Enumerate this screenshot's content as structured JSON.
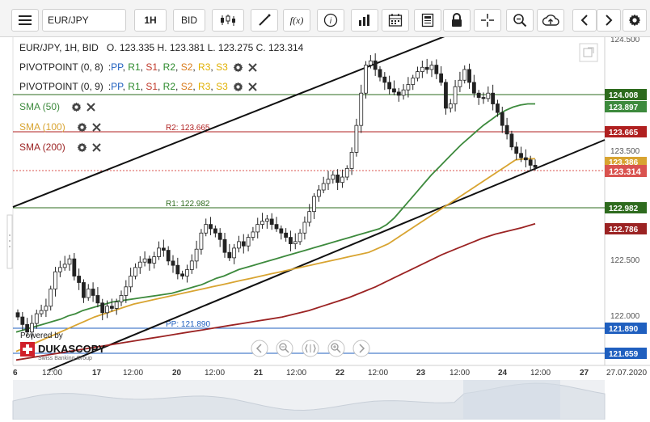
{
  "toolbar": {
    "instrument": "EUR/JPY",
    "timeframe": "1H",
    "price_side": "BID",
    "function_label": "f(x)"
  },
  "header": {
    "symbol_line": "EUR/JPY, 1H, BID",
    "ohlc": "O. 123.335 H. 123.381 L. 123.275 C. 123.314"
  },
  "indicators": {
    "pivot1": {
      "label": "PIVOTPOINT (0, 8)",
      "levels": [
        "PP",
        "R1",
        "S1",
        "R2",
        "S2",
        "R3",
        "S3"
      ]
    },
    "pivot2": {
      "label": "PIVOTPOINT (0, 9)",
      "levels": [
        "PP",
        "R1",
        "S1",
        "R2",
        "S2",
        "R3",
        "S3"
      ]
    },
    "sma50": {
      "label": "SMA (50)",
      "color": "#3d8a3d"
    },
    "sma100": {
      "label": "SMA (100)",
      "color": "#d8a431"
    },
    "sma200": {
      "label": "SMA (200)",
      "color": "#9b2323"
    },
    "level_colors": {
      "PP": "#1f5fbf",
      "R1": "#2e8b2e",
      "S1": "#c0392b",
      "R2": "#2e8b2e",
      "S2": "#d87a1a",
      "R3": "#e0b000",
      "S3": "#e0b000"
    }
  },
  "pivot_labels": {
    "r2": "R2: 123.665",
    "r1": "R1: 122.982",
    "pp": "PP: 121.890"
  },
  "price_axis": {
    "ticks": [
      "124.500",
      "123.500",
      "122.500",
      "122.000"
    ],
    "tags": [
      {
        "text": "124.008",
        "bg": "#2e6b1e"
      },
      {
        "text": "123.897",
        "bg": "#3d8a3d"
      },
      {
        "text": "123.665",
        "bg": "#b02020"
      },
      {
        "text": "123.386",
        "bg": "#d8a431"
      },
      {
        "text": "123.314",
        "bg": "#d9534f"
      },
      {
        "text": "122.982",
        "bg": "#2e6b1e"
      },
      {
        "text": "122.786",
        "bg": "#9b2323"
      },
      {
        "text": "121.890",
        "bg": "#1f5fbf"
      },
      {
        "text": "121.659",
        "bg": "#1f5fbf"
      }
    ]
  },
  "time_axis": {
    "labels": [
      "6",
      "12:00",
      "17",
      "12:00",
      "20",
      "12:00",
      "21",
      "12:00",
      "22",
      "12:00",
      "23",
      "12:00",
      "24",
      "12:00",
      "27",
      "27.07.2020"
    ]
  },
  "branding": {
    "powered_by": "Powered by",
    "name": "DUKASCOPY",
    "tagline": "Swiss Banking Group"
  },
  "chart_data": {
    "type": "candlestick",
    "instrument": "EUR/JPY",
    "timeframe": "1H",
    "y_range": [
      121.6,
      124.55
    ],
    "x_range_labels": [
      "6",
      "17",
      "20",
      "21",
      "22",
      "23",
      "24",
      "27"
    ],
    "close_series": [
      121.92,
      121.85,
      121.78,
      121.86,
      121.95,
      121.98,
      122.02,
      122.18,
      122.34,
      122.38,
      122.41,
      122.46,
      122.3,
      122.24,
      122.1,
      122.18,
      122.12,
      122.05,
      121.96,
      122.02,
      122.0,
      122.06,
      122.12,
      122.2,
      122.3,
      122.38,
      122.43,
      122.46,
      122.42,
      122.48,
      122.56,
      122.54,
      122.44,
      122.4,
      122.32,
      122.3,
      122.36,
      122.44,
      122.55,
      122.7,
      122.78,
      122.74,
      122.7,
      122.64,
      122.52,
      122.47,
      122.56,
      122.62,
      122.58,
      122.66,
      122.71,
      122.78,
      122.81,
      122.83,
      122.78,
      122.74,
      122.7,
      122.66,
      122.6,
      122.62,
      122.7,
      122.8,
      122.9,
      123.04,
      123.1,
      123.16,
      123.2,
      123.24,
      123.17,
      123.22,
      123.3,
      123.45,
      123.7,
      124.0,
      124.26,
      124.3,
      124.22,
      124.15,
      124.1,
      124.04,
      124.01,
      123.98,
      124.03,
      124.08,
      124.14,
      124.2,
      124.24,
      124.22,
      124.26,
      124.18,
      124.1,
      123.86,
      123.9,
      124.06,
      124.12,
      124.22,
      124.1,
      124.0,
      123.96,
      123.95,
      124.0,
      123.9,
      123.82,
      123.7,
      123.62,
      123.5,
      123.44,
      123.4,
      123.38,
      123.33,
      123.31
    ],
    "sma50": [
      121.78,
      121.8,
      121.82,
      121.84,
      121.86,
      121.88,
      121.9,
      121.93,
      121.95,
      121.98,
      122.0,
      122.02,
      122.04,
      122.06,
      122.07,
      122.08,
      122.09,
      122.1,
      122.11,
      122.12,
      122.13,
      122.14,
      122.16,
      122.18,
      122.2,
      122.22,
      122.25,
      122.28,
      122.3,
      122.33,
      122.36,
      122.38,
      122.4,
      122.42,
      122.44,
      122.46,
      122.48,
      122.5,
      122.52,
      122.54,
      122.56,
      122.58,
      122.6,
      122.62,
      122.64,
      122.66,
      122.68,
      122.7,
      122.72,
      122.74,
      122.78,
      122.84,
      122.92,
      123.0,
      123.08,
      123.16,
      123.24,
      123.31,
      123.38,
      123.45,
      123.52,
      123.58,
      123.64,
      123.7,
      123.75,
      123.8,
      123.84,
      123.87,
      123.89,
      123.9,
      123.9
    ],
    "sma100": [
      121.6,
      121.64,
      121.68,
      121.72,
      121.76,
      121.8,
      121.84,
      121.88,
      121.92,
      121.95,
      121.98,
      122.01,
      122.04,
      122.06,
      122.08,
      122.1,
      122.12,
      122.14,
      122.16,
      122.18,
      122.2,
      122.22,
      122.24,
      122.26,
      122.28,
      122.3,
      122.32,
      122.34,
      122.36,
      122.38,
      122.4,
      122.42,
      122.44,
      122.46,
      122.48,
      122.5,
      122.52,
      122.56,
      122.6,
      122.66,
      122.72,
      122.78,
      122.84,
      122.9,
      122.96,
      123.02,
      123.08,
      123.14,
      123.2,
      123.26,
      123.32,
      123.38,
      123.39,
      123.39
    ],
    "sma200": [
      121.52,
      121.54,
      121.56,
      121.58,
      121.6,
      121.62,
      121.64,
      121.66,
      121.68,
      121.7,
      121.72,
      121.74,
      121.76,
      121.78,
      121.8,
      121.82,
      121.84,
      121.86,
      121.88,
      121.9,
      121.92,
      121.95,
      121.98,
      122.02,
      122.06,
      122.1,
      122.15,
      122.2,
      122.26,
      122.32,
      122.38,
      122.44,
      122.5,
      122.55,
      122.6,
      122.65,
      122.69,
      122.72,
      122.75,
      122.786
    ],
    "pivot_levels": {
      "R2": 123.665,
      "R1": 122.982,
      "PP": 121.89
    },
    "last_price": 123.314
  }
}
